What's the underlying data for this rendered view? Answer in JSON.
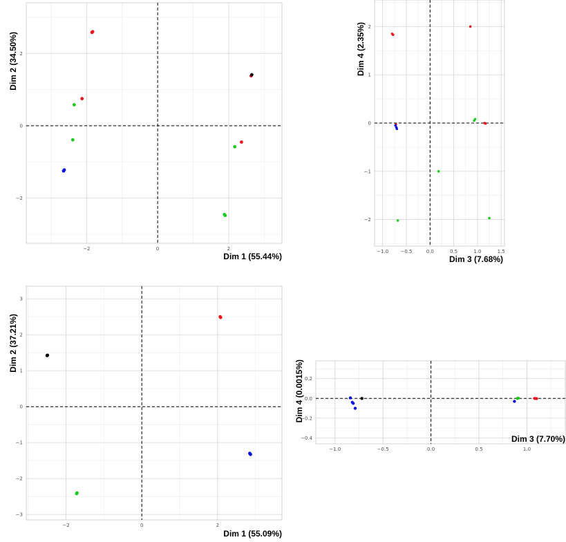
{
  "colors": {
    "red": "#e8141e",
    "green": "#1ec81e",
    "blue": "#0b14d8",
    "black": "#000000"
  },
  "chart_data": [
    {
      "type": "scatter",
      "xlabel": "Dim 1 (55.44%)",
      "ylabel": "Dim 2 (34.50%)",
      "xlim": [
        -3.7,
        3.5
      ],
      "ylim": [
        -3.25,
        3.4
      ],
      "xticks": [
        -2,
        0,
        2
      ],
      "yticks": [
        -2,
        0,
        2
      ],
      "tick_labels_x": [
        "−2",
        "0",
        "2"
      ],
      "tick_labels_y": [
        "−2",
        "0",
        "2"
      ],
      "grid": true,
      "points": [
        {
          "x": -1.85,
          "y": 2.58,
          "color": "red"
        },
        {
          "x": -1.83,
          "y": 2.6,
          "color": "red"
        },
        {
          "x": -2.13,
          "y": 0.75,
          "color": "red"
        },
        {
          "x": -2.35,
          "y": 0.58,
          "color": "green"
        },
        {
          "x": -2.39,
          "y": -0.39,
          "color": "green"
        },
        {
          "x": -2.65,
          "y": -1.25,
          "color": "blue"
        },
        {
          "x": -2.63,
          "y": -1.22,
          "color": "blue"
        },
        {
          "x": 2.63,
          "y": 1.38,
          "color": "red"
        },
        {
          "x": 2.65,
          "y": 1.41,
          "color": "black"
        },
        {
          "x": 2.36,
          "y": -0.45,
          "color": "red"
        },
        {
          "x": 2.17,
          "y": -0.58,
          "color": "green"
        },
        {
          "x": 1.88,
          "y": -2.45,
          "color": "green"
        },
        {
          "x": 1.9,
          "y": -2.48,
          "color": "green"
        }
      ]
    },
    {
      "type": "scatter",
      "xlabel": "Dim 3 (7.68%)",
      "ylabel": "Dim 4 (2.35%)",
      "xlim": [
        -1.17,
        1.57
      ],
      "ylim": [
        -2.55,
        2.55
      ],
      "xticks": [
        -1.0,
        -0.5,
        0.0,
        0.5,
        1.0,
        1.5
      ],
      "yticks": [
        -2,
        -1,
        0,
        1,
        2
      ],
      "tick_labels_x": [
        "−1.0",
        "−0.5",
        "0.0",
        "0.5",
        "1.0",
        "1.5"
      ],
      "tick_labels_y": [
        "−2",
        "−1",
        "0",
        "1",
        "2"
      ],
      "grid": true,
      "points": [
        {
          "x": -0.8,
          "y": 1.85,
          "color": "red"
        },
        {
          "x": -0.78,
          "y": 1.83,
          "color": "red"
        },
        {
          "x": 0.85,
          "y": 2.0,
          "color": "red"
        },
        {
          "x": -0.72,
          "y": -0.03,
          "color": "red"
        },
        {
          "x": -0.73,
          "y": -0.05,
          "color": "blue"
        },
        {
          "x": -0.71,
          "y": -0.09,
          "color": "blue"
        },
        {
          "x": -0.7,
          "y": -0.12,
          "color": "blue"
        },
        {
          "x": 0.93,
          "y": 0.05,
          "color": "green"
        },
        {
          "x": 0.95,
          "y": 0.08,
          "color": "green"
        },
        {
          "x": 1.15,
          "y": 0.0,
          "color": "red"
        },
        {
          "x": 1.17,
          "y": -0.01,
          "color": "red"
        },
        {
          "x": 0.18,
          "y": -1.0,
          "color": "green"
        },
        {
          "x": -0.68,
          "y": -2.02,
          "color": "green"
        },
        {
          "x": 1.25,
          "y": -1.97,
          "color": "green"
        }
      ]
    },
    {
      "type": "scatter",
      "xlabel": "Dim 1 (55.09%)",
      "ylabel": "Dim 2 (37.21%)",
      "xlim": [
        -3.05,
        3.7
      ],
      "ylim": [
        -3.15,
        3.35
      ],
      "xticks": [
        -2,
        0,
        2
      ],
      "yticks": [
        -3,
        -2,
        -1,
        0,
        1,
        2,
        3
      ],
      "tick_labels_x": [
        "−2",
        "0",
        "2"
      ],
      "tick_labels_y": [
        "−3",
        "−2",
        "−1",
        "0",
        "1",
        "2",
        "3"
      ],
      "grid": true,
      "points": [
        {
          "x": -2.5,
          "y": 1.42,
          "color": "black"
        },
        {
          "x": -2.49,
          "y": 1.43,
          "color": "black"
        },
        {
          "x": 2.07,
          "y": 2.5,
          "color": "red"
        },
        {
          "x": 2.08,
          "y": 2.48,
          "color": "red"
        },
        {
          "x": 2.85,
          "y": -1.3,
          "color": "blue"
        },
        {
          "x": 2.87,
          "y": -1.33,
          "color": "blue"
        },
        {
          "x": -1.72,
          "y": -2.42,
          "color": "green"
        },
        {
          "x": -1.71,
          "y": -2.4,
          "color": "green"
        }
      ]
    },
    {
      "type": "scatter",
      "xlabel": "Dim 3 (7.70%)",
      "ylabel": "Dim 4 (0.0015%)",
      "xlim": [
        -1.2,
        1.4
      ],
      "ylim": [
        -0.46,
        0.38
      ],
      "xticks": [
        -1.0,
        -0.5,
        0.0,
        0.5,
        1.0
      ],
      "yticks": [
        -0.4,
        -0.2,
        0.0,
        0.2
      ],
      "tick_labels_x": [
        "−1.0",
        "−0.5",
        "0.0",
        "0.5",
        "1.0"
      ],
      "tick_labels_y": [
        "−0.4",
        "−0.2",
        "0.0",
        "0.2"
      ],
      "grid": true,
      "points": [
        {
          "x": -0.84,
          "y": 0.005,
          "color": "blue"
        },
        {
          "x": -0.82,
          "y": -0.04,
          "color": "blue"
        },
        {
          "x": -0.81,
          "y": -0.05,
          "color": "blue"
        },
        {
          "x": -0.79,
          "y": -0.1,
          "color": "blue"
        },
        {
          "x": -0.72,
          "y": 0.0,
          "color": "black"
        },
        {
          "x": 0.87,
          "y": -0.03,
          "color": "blue"
        },
        {
          "x": 0.9,
          "y": 0.0,
          "color": "green"
        },
        {
          "x": 0.91,
          "y": 0.002,
          "color": "green"
        },
        {
          "x": 1.08,
          "y": 0.0,
          "color": "red"
        },
        {
          "x": 1.1,
          "y": -0.002,
          "color": "red"
        }
      ]
    }
  ]
}
